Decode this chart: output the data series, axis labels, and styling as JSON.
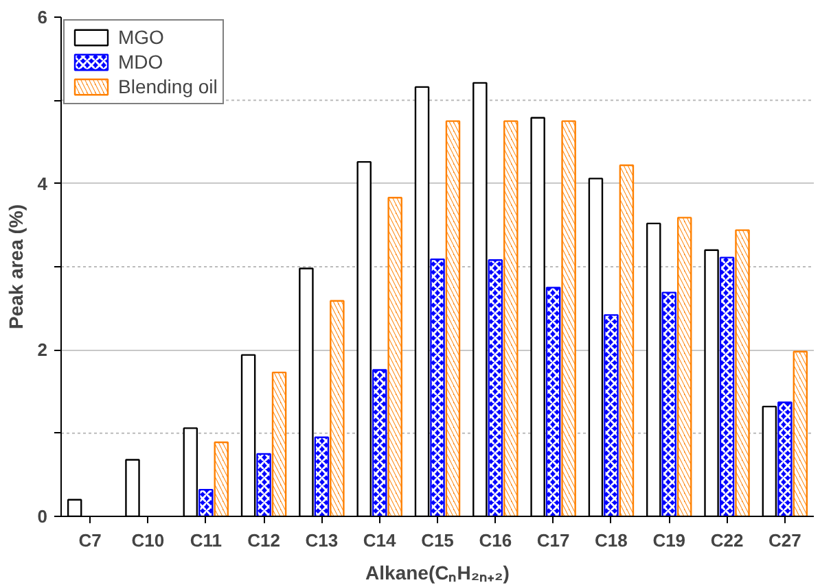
{
  "chart_data": {
    "type": "bar",
    "xlabel": "Alkane(CₙH₂ₙ₊₂)",
    "ylabel": "Peak area (%)",
    "categories": [
      "C7",
      "C10",
      "C11",
      "C12",
      "C13",
      "C14",
      "C15",
      "C16",
      "C17",
      "C18",
      "C19",
      "C22",
      "C27"
    ],
    "series": [
      {
        "name": "MGO",
        "color": "#000000",
        "values": [
          0.2,
          0.68,
          1.06,
          1.94,
          2.98,
          4.26,
          5.16,
          5.21,
          4.79,
          4.06,
          3.52,
          3.2,
          1.32
        ]
      },
      {
        "name": "MDO",
        "color": "#0000ff",
        "values": [
          null,
          null,
          0.32,
          0.75,
          0.95,
          1.76,
          3.09,
          3.08,
          2.75,
          2.42,
          2.69,
          3.11,
          1.37
        ]
      },
      {
        "name": "Blending oil",
        "color": "#ff8000",
        "values": [
          null,
          null,
          0.89,
          1.73,
          2.59,
          3.83,
          4.75,
          4.75,
          4.75,
          4.22,
          3.59,
          3.44,
          1.98
        ]
      }
    ],
    "ylim": [
      0,
      6
    ],
    "yticks": [
      0,
      {
        "value": 1,
        "label": null
      },
      2,
      {
        "value": 3,
        "label": null
      },
      4,
      {
        "value": 5,
        "label": null
      },
      6
    ],
    "grid": "y",
    "legend": "top left"
  }
}
